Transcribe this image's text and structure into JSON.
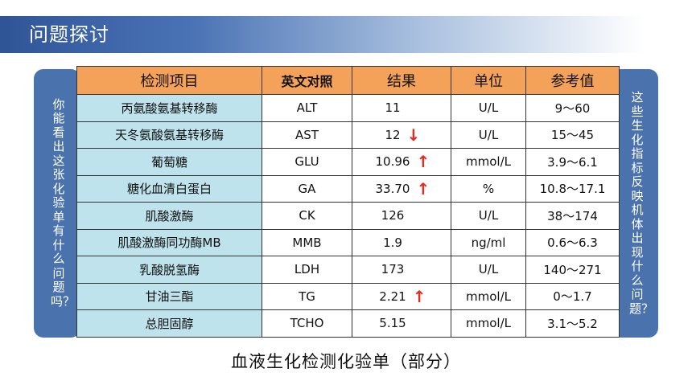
{
  "header": {
    "title": "问题探讨"
  },
  "left_panel": {
    "text": "你能看出这张化验单有什么问题吗？"
  },
  "right_panel": {
    "text": "这些生化指标反映机体出现什么问题？"
  },
  "table": {
    "headers": [
      "检测项目",
      "英文对照",
      "结果",
      "单位",
      "参考值"
    ],
    "rows": [
      {
        "name": "丙氨酸氨基转移酶",
        "code": "ALT",
        "result": "11",
        "arrow": "",
        "unit": "U/L",
        "ref": "9～60"
      },
      {
        "name": "天冬氨酸氨基转移酶",
        "code": "AST",
        "result": "12",
        "arrow": "↓",
        "unit": "U/L",
        "ref": "15～45"
      },
      {
        "name": "葡萄糖",
        "code": "GLU",
        "result": "10.96",
        "arrow": "↑",
        "unit": "mmol/L",
        "ref": "3.9～6.1"
      },
      {
        "name": "糖化血清白蛋白",
        "code": "GA",
        "result": "33.70",
        "arrow": "↑",
        "unit": "%",
        "ref": "10.8～17.1"
      },
      {
        "name": "肌酸激酶",
        "code": "CK",
        "result": "126",
        "arrow": "",
        "unit": "U/L",
        "ref": "38～174"
      },
      {
        "name": "肌酸激酶同功酶MB",
        "code": "MMB",
        "result": "1.9",
        "arrow": "",
        "unit": "ng/ml",
        "ref": "0.6～6.3"
      },
      {
        "name": "乳酸脱氢酶",
        "code": "LDH",
        "result": "173",
        "arrow": "",
        "unit": "U/L",
        "ref": "140～271"
      },
      {
        "name": "甘油三酯",
        "code": "TG",
        "result": "2.21",
        "arrow": "↑",
        "unit": "mmol/L",
        "ref": "0～1.7"
      },
      {
        "name": "总胆固醇",
        "code": "TCHO",
        "result": "5.15",
        "arrow": "",
        "unit": "mmol/L",
        "ref": "3.1～5.2"
      }
    ]
  },
  "caption": "血液生化检测化验单（部分）",
  "colors": {
    "header_bar": "#2f5597",
    "side_panel": "#4a72ad",
    "table_header": "#f4a25a",
    "name_cell": "#bfe3ed",
    "arrow": "#e8271d"
  }
}
